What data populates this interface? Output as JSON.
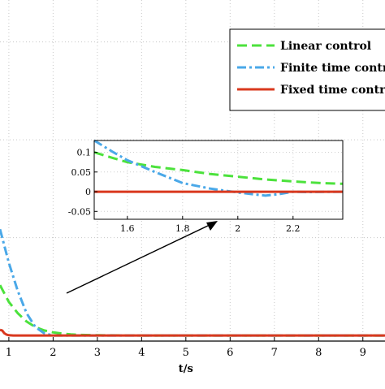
{
  "chart_data": {
    "type": "line",
    "title": "",
    "xlabel": "t/s",
    "ylabel": "",
    "xlim": [
      0.8,
      9.5
    ],
    "ylim": [
      -0.02,
      1.2
    ],
    "grid": true,
    "x_tick_labels": [
      "1",
      "2",
      "3",
      "4",
      "5",
      "6",
      "7",
      "8",
      "9"
    ],
    "legend": {
      "placement": "top-right"
    },
    "series": [
      {
        "name": "Linear control",
        "color": "#4CE23C",
        "dash": "dashed",
        "x": [
          0.8,
          1.0,
          1.2,
          1.4,
          1.6,
          1.8,
          2.0,
          2.2,
          2.4,
          2.6,
          3.0,
          4.0,
          6.0,
          9.5
        ],
        "y": [
          0.18,
          0.12,
          0.08,
          0.05,
          0.03,
          0.018,
          0.011,
          0.007,
          0.004,
          0.002,
          0.001,
          0.0,
          0.0,
          0.0
        ]
      },
      {
        "name": "Finite time control",
        "color": "#4AA8E8",
        "dash": "dashdot",
        "x": [
          0.8,
          1.0,
          1.2,
          1.4,
          1.6,
          1.8,
          2.0,
          2.2,
          2.4,
          3.0,
          4.0,
          6.0,
          9.5
        ],
        "y": [
          0.38,
          0.26,
          0.16,
          0.08,
          0.03,
          0.008,
          0.0,
          0.0,
          0.0,
          0.0,
          0.0,
          0.0,
          0.0
        ]
      },
      {
        "name": "Fixed time control",
        "color": "#D9381E",
        "dash": "solid",
        "x": [
          0.8,
          0.85,
          0.9,
          0.95,
          1.0,
          1.1,
          2.0,
          4.0,
          6.0,
          9.5
        ],
        "y": [
          0.02,
          0.018,
          0.008,
          0.003,
          0.001,
          0.0,
          0.0,
          0.0,
          0.0,
          0.0
        ]
      }
    ],
    "inset": {
      "xlim": [
        1.48,
        2.38
      ],
      "ylim": [
        -0.07,
        0.13
      ],
      "x_tick_labels": [
        "1.6",
        "1.8",
        "2",
        "2.2"
      ],
      "y_tick_labels": [
        "0.1",
        "0.05",
        "0",
        "-0.05"
      ],
      "series": [
        {
          "name": "Linear control",
          "x": [
            1.48,
            1.55,
            1.6,
            1.7,
            1.8,
            1.9,
            2.0,
            2.1,
            2.2,
            2.3,
            2.38
          ],
          "y": [
            0.1,
            0.085,
            0.075,
            0.063,
            0.055,
            0.045,
            0.038,
            0.031,
            0.026,
            0.022,
            0.02
          ]
        },
        {
          "name": "Finite time control",
          "x": [
            1.48,
            1.55,
            1.6,
            1.7,
            1.8,
            1.9,
            1.96,
            2.0,
            2.05,
            2.1,
            2.15,
            2.2,
            2.25,
            2.38
          ],
          "y": [
            0.13,
            0.1,
            0.08,
            0.05,
            0.022,
            0.008,
            0.002,
            -0.002,
            -0.006,
            -0.01,
            -0.006,
            0.0,
            -0.001,
            0.0
          ]
        },
        {
          "name": "Fixed time control",
          "x": [
            1.48,
            2.38
          ],
          "y": [
            0.0,
            0.0
          ]
        }
      ]
    }
  }
}
